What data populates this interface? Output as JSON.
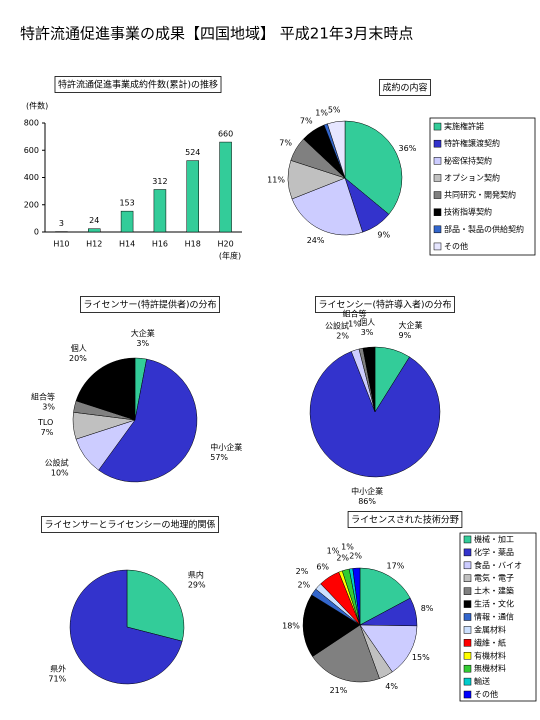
{
  "page_title": "特許流通促進事業の成果【四国地域】 平成21年3月末時点",
  "chart_data": [
    {
      "type": "bar",
      "title": "特許流通促進事業成約件数(累計)の推移",
      "y_label": "(件数)",
      "x_label": "(年度)",
      "categories": [
        "H10",
        "H12",
        "H14",
        "H16",
        "H18",
        "H20"
      ],
      "values": [
        3,
        24,
        153,
        312,
        524,
        660
      ],
      "color": "#33cc99",
      "ylim": [
        0,
        800
      ],
      "yticks": [
        0,
        200,
        400,
        600,
        800
      ]
    },
    {
      "type": "pie",
      "title": "成約の内容",
      "legend": "right",
      "categories": [
        "実施権許諾",
        "特許権譲渡契約",
        "秘密保持契約",
        "オプション契約",
        "共同研究・開発契約",
        "技術指導契約",
        "部品・製品の供給契約",
        "その他"
      ],
      "values": [
        36,
        9,
        24,
        11,
        7,
        7,
        1,
        5
      ],
      "value_labels": [
        "36%",
        "9%",
        "24%",
        "11%",
        "7%",
        "7%",
        "1%",
        "5%"
      ],
      "colors": [
        "#33cc99",
        "#3333cc",
        "#ccccff",
        "#c0c0c0",
        "#808080",
        "#000000",
        "#3366cc",
        "#e6e6ff"
      ]
    },
    {
      "type": "pie",
      "title": "ライセンサー(特許提供者)の分布",
      "legend": "none",
      "categories": [
        "大企業",
        "中小企業",
        "公設試",
        "TLO",
        "組合等",
        "個人"
      ],
      "values": [
        3,
        57,
        10,
        7,
        3,
        20
      ],
      "value_labels": [
        "3%",
        "57%",
        "10%",
        "7%",
        "3%",
        "20%"
      ],
      "colors": [
        "#33cc99",
        "#3333cc",
        "#ccccff",
        "#c0c0c0",
        "#808080",
        "#000000"
      ]
    },
    {
      "type": "pie",
      "title": "ライセンシー(特許導入者)の分布",
      "legend": "none",
      "categories": [
        "大企業",
        "中小企業",
        "公設試",
        "組合等",
        "個人"
      ],
      "values": [
        9,
        86,
        2,
        1,
        3
      ],
      "value_labels": [
        "9%",
        "86%",
        "2%",
        "1%",
        "3%"
      ],
      "colors": [
        "#33cc99",
        "#3333cc",
        "#ccccff",
        "#808080",
        "#000000"
      ]
    },
    {
      "type": "pie",
      "title": "ライセンサーとライセンシーの地理的関係",
      "legend": "none",
      "categories": [
        "県内",
        "県外"
      ],
      "values": [
        29,
        71
      ],
      "value_labels": [
        "29%",
        "71%"
      ],
      "colors": [
        "#33cc99",
        "#3333cc"
      ]
    },
    {
      "type": "pie",
      "title": "ライセンスされた技術分野",
      "legend": "right",
      "categories": [
        "機械・加工",
        "化学・薬品",
        "食品・バイオ",
        "電気・電子",
        "土木・建築",
        "生活・文化",
        "情報・通信",
        "金属材料",
        "繊維・紙",
        "有機材料",
        "無機材料",
        "輸送",
        "その他"
      ],
      "values": [
        17,
        8,
        15,
        4,
        21,
        18,
        2,
        2,
        6,
        1,
        2,
        1,
        2
      ],
      "value_labels": [
        "17%",
        "8%",
        "15%",
        "4%",
        "21%",
        "18%",
        "2%",
        "2%",
        "6%",
        "1%",
        "2%",
        "1%",
        "2%"
      ],
      "colors": [
        "#33cc99",
        "#3333cc",
        "#ccccff",
        "#c0c0c0",
        "#808080",
        "#000000",
        "#3366cc",
        "#cce0ff",
        "#ff0000",
        "#ffff00",
        "#33cc33",
        "#00cccc",
        "#0000ff"
      ]
    }
  ]
}
